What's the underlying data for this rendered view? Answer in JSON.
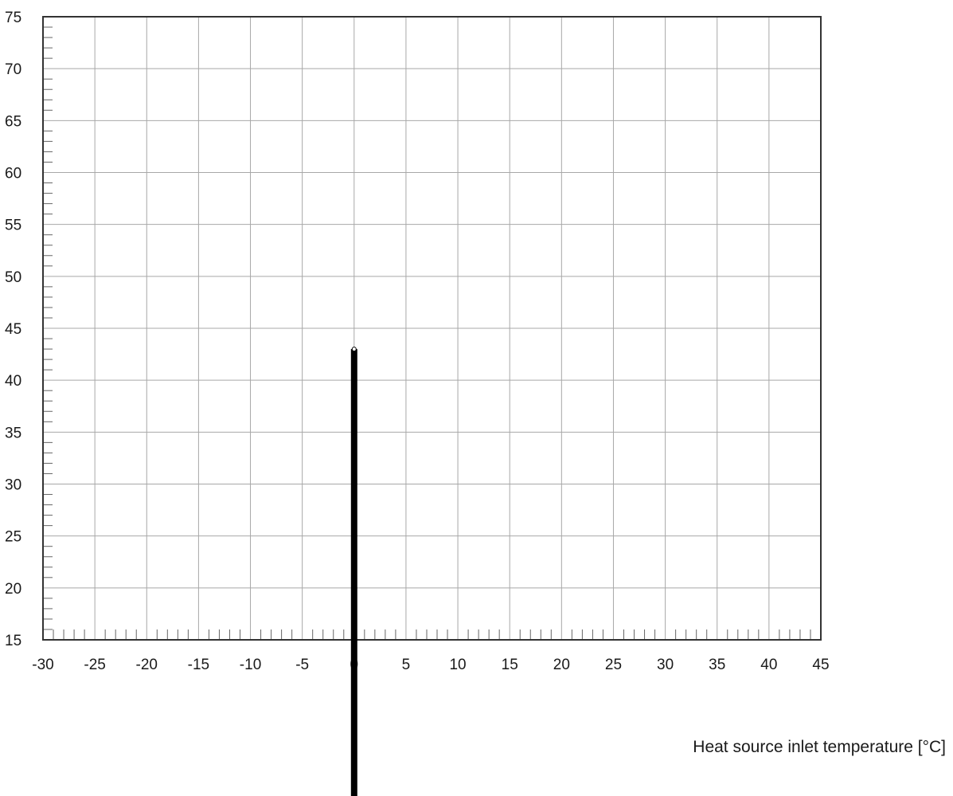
{
  "chart_data": {
    "type": "line",
    "title": "",
    "xlabel": "Heat source inlet temperature [°C]",
    "ylabel": "",
    "xlim": [
      -30,
      45
    ],
    "ylim": [
      15,
      75
    ],
    "x_ticks": [
      -30,
      -25,
      -20,
      -15,
      -10,
      -5,
      0,
      5,
      10,
      15,
      20,
      25,
      30,
      35,
      40,
      45
    ],
    "y_ticks": [
      15,
      20,
      25,
      30,
      35,
      40,
      45,
      50,
      55,
      60,
      65,
      70,
      75
    ],
    "grid": true,
    "minor_ticks": 1,
    "series": [
      {
        "color": "#000000",
        "points": [
          {
            "x": 0,
            "y": 43
          },
          {
            "x": 0,
            "y": -0.3
          }
        ]
      }
    ]
  }
}
